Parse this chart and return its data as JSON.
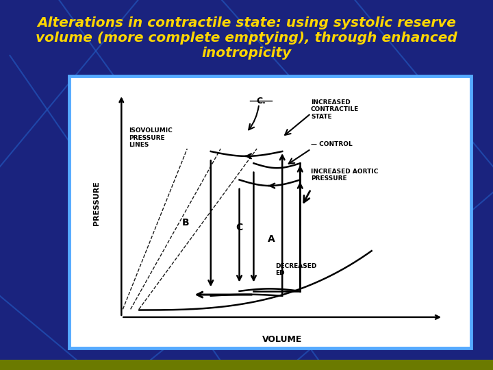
{
  "title_line1": "Alterations in contractile state: using systolic reserve",
  "title_line2": "volume (more complete emptying), through enhanced",
  "title_line3": "inotropicity",
  "title_color": "#FFD700",
  "title_fontsize": 14.5,
  "bg_color": "#1a237e",
  "panel_border_color": "#55aaff",
  "xlabel": "VOLUME",
  "ylabel": "PRESSURE",
  "label_isovolumic": "ISOVOLUMIC\nPRESSURE\nLINES",
  "label_C_dot": "C.",
  "label_increased_cs": "INCREASED\nCONTRACTILE\nSTATE",
  "label_control": "— CONTROL",
  "label_increased_aortic": "INCREASED AORTIC\nPRESSURE",
  "label_decreased_ed": "DECREASED\nED",
  "label_B": "B",
  "label_C": "C",
  "label_A": "A"
}
